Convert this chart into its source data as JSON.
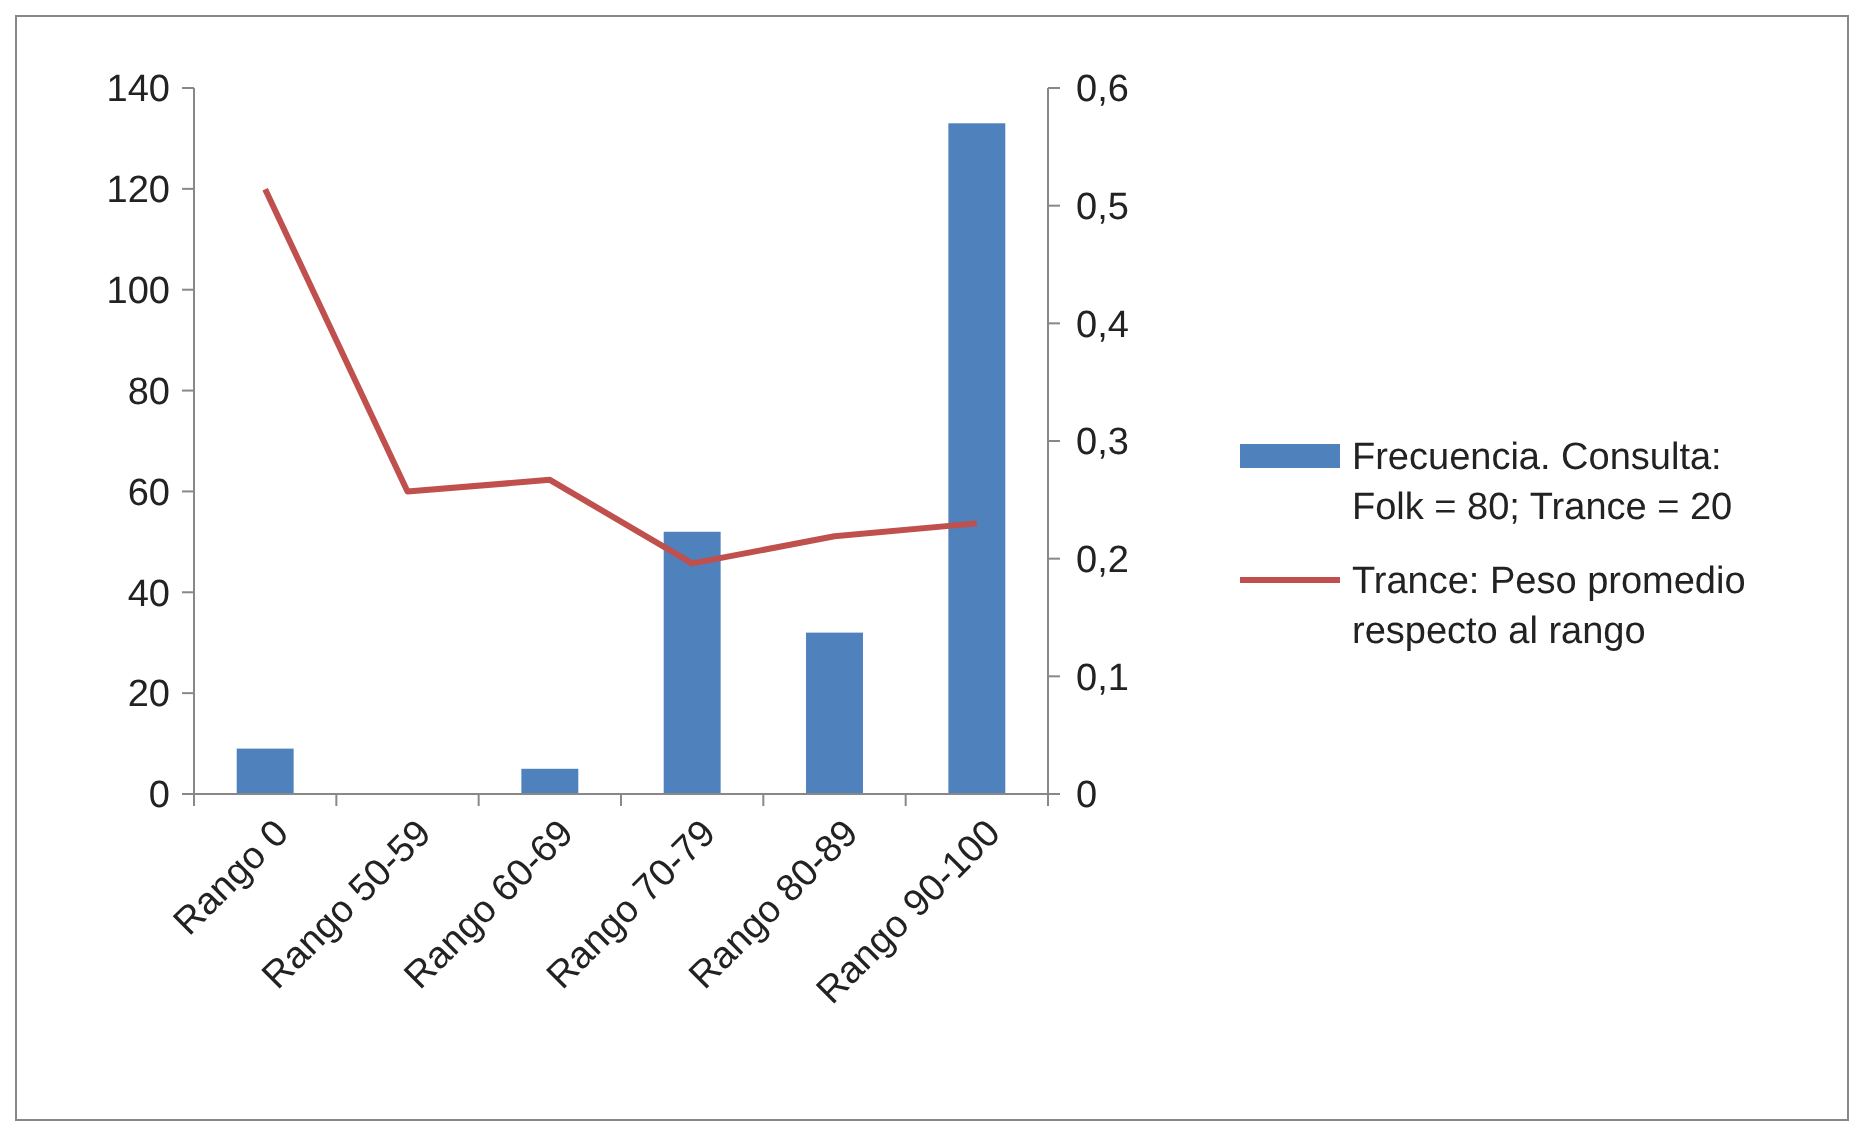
{
  "chart_data": {
    "type": "bar",
    "categories": [
      "Rango 0",
      "Rango 50-59",
      "Rango 60-69",
      "Rango 70-79",
      "Rango 80-89",
      "Rango 90-100"
    ],
    "series": [
      {
        "name": "Frecuencia. Consulta: Folk = 80; Trance = 20",
        "color": "#4f81bd",
        "values": [
          9,
          0,
          5,
          52,
          32,
          133
        ]
      },
      {
        "name": "Trance: Peso promedio respecto al rango",
        "type": "line",
        "axis": "y2",
        "color": "#c0504d",
        "values": [
          0.514,
          0.257,
          0.267,
          0.196,
          0.219,
          0.23
        ]
      }
    ],
    "ylim": [
      0,
      140
    ],
    "yticks": [
      0,
      20,
      40,
      60,
      80,
      100,
      120,
      140
    ],
    "y2lim": [
      0,
      0.6
    ],
    "y2ticks": [
      {
        "value": 0,
        "label": "0"
      },
      {
        "value": 0.1,
        "label": "0,1"
      },
      {
        "value": 0.2,
        "label": "0,2"
      },
      {
        "value": 0.3,
        "label": "0,3"
      },
      {
        "value": 0.4,
        "label": "0,4"
      },
      {
        "value": 0.5,
        "label": "0,5"
      },
      {
        "value": 0.6,
        "label": "0,6"
      }
    ],
    "grid": false,
    "legend": "right",
    "marker": "none",
    "line_style": "solid"
  }
}
